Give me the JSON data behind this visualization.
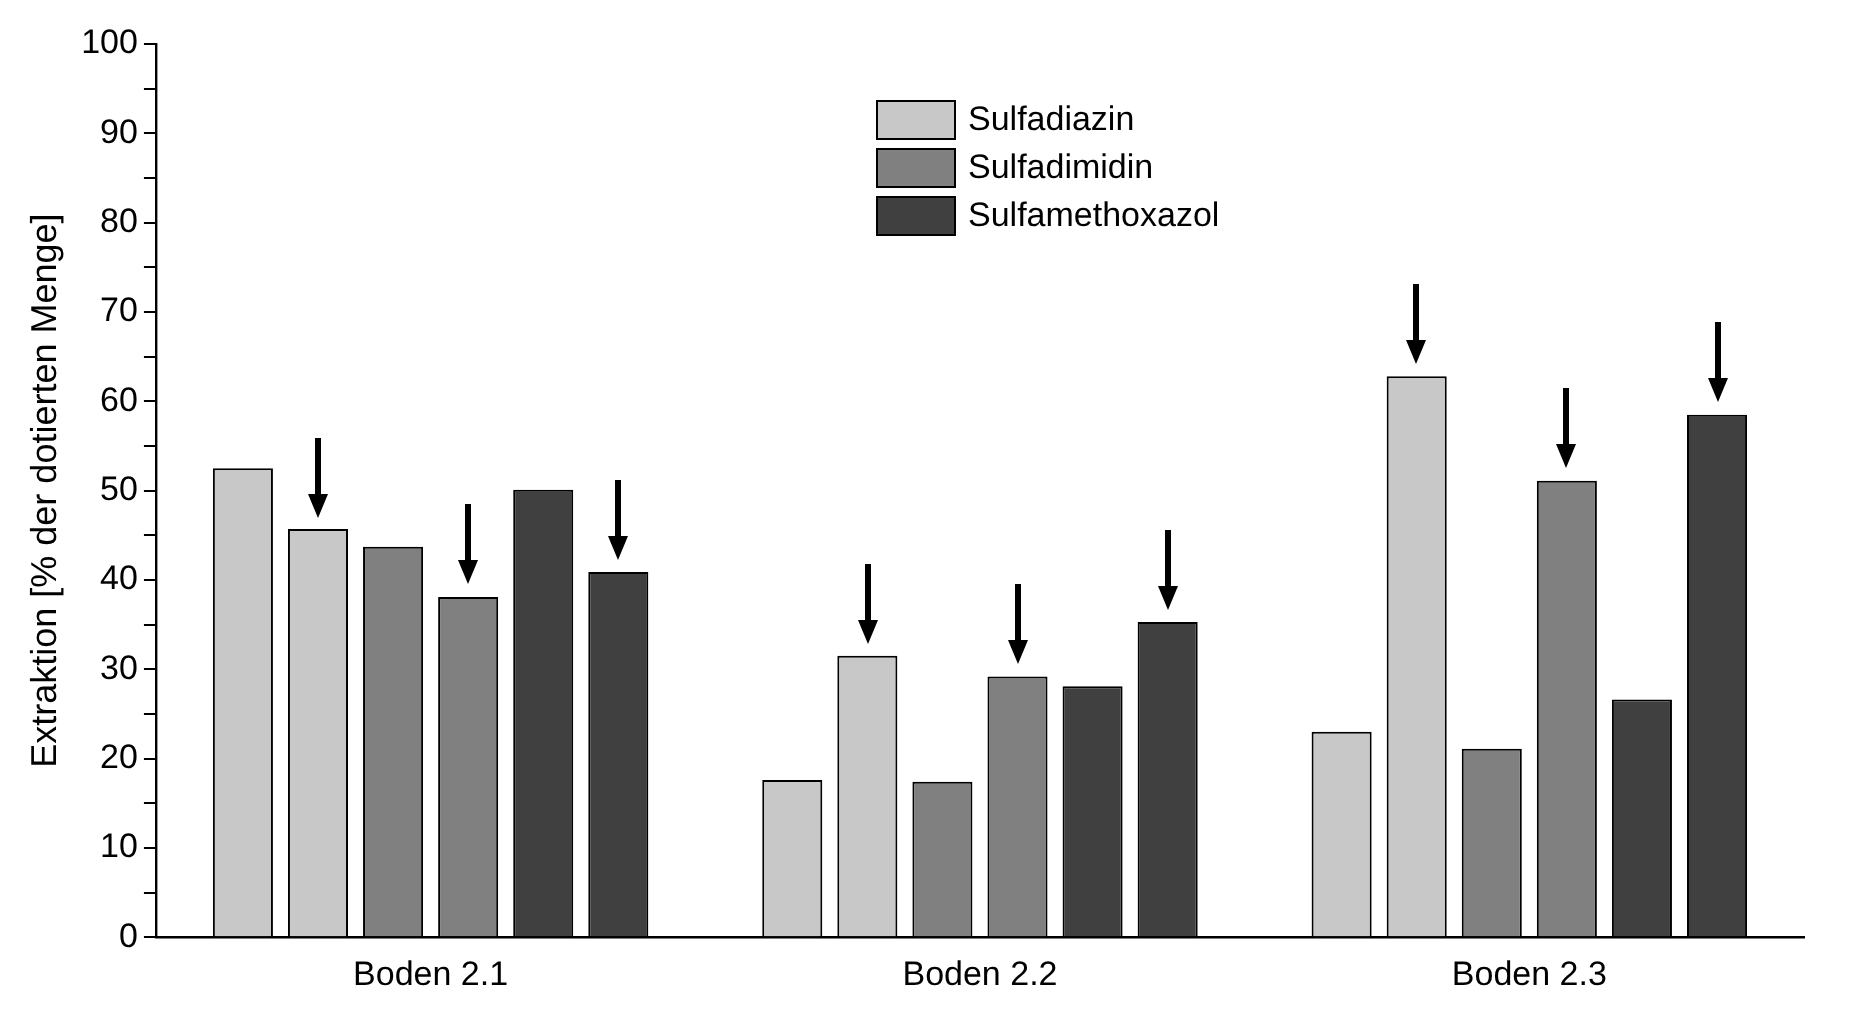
{
  "chart_data": {
    "type": "bar",
    "ylabel": "Extraktion [% der dotierten Menge]",
    "categories": [
      "Boden 2.1",
      "Boden 2.2",
      "Boden 2.3"
    ],
    "series": [
      {
        "name": "Sulfadiazin",
        "color": "#c8c8c8",
        "values": [
          52.5,
          17.6,
          23.0
        ]
      },
      {
        "color": "#c8c8c8",
        "values": [
          45.7,
          31.5,
          62.8
        ]
      },
      {
        "name": "Sulfadimidin",
        "color": "#808080",
        "values": [
          43.7,
          17.4,
          21.1
        ]
      },
      {
        "color": "#808080",
        "values": [
          38.1,
          29.2,
          51.1
        ]
      },
      {
        "name": "Sulfamethoxazol",
        "color": "#404040",
        "values": [
          50.1,
          28.1,
          26.6
        ]
      },
      {
        "color": "#404040",
        "values": [
          40.9,
          35.3,
          58.5
        ]
      }
    ],
    "ylim": [
      0,
      100
    ],
    "yticks": [
      0,
      10,
      20,
      30,
      40,
      50,
      60,
      70,
      80,
      90,
      100
    ],
    "grid": false,
    "legend": "top"
  }
}
